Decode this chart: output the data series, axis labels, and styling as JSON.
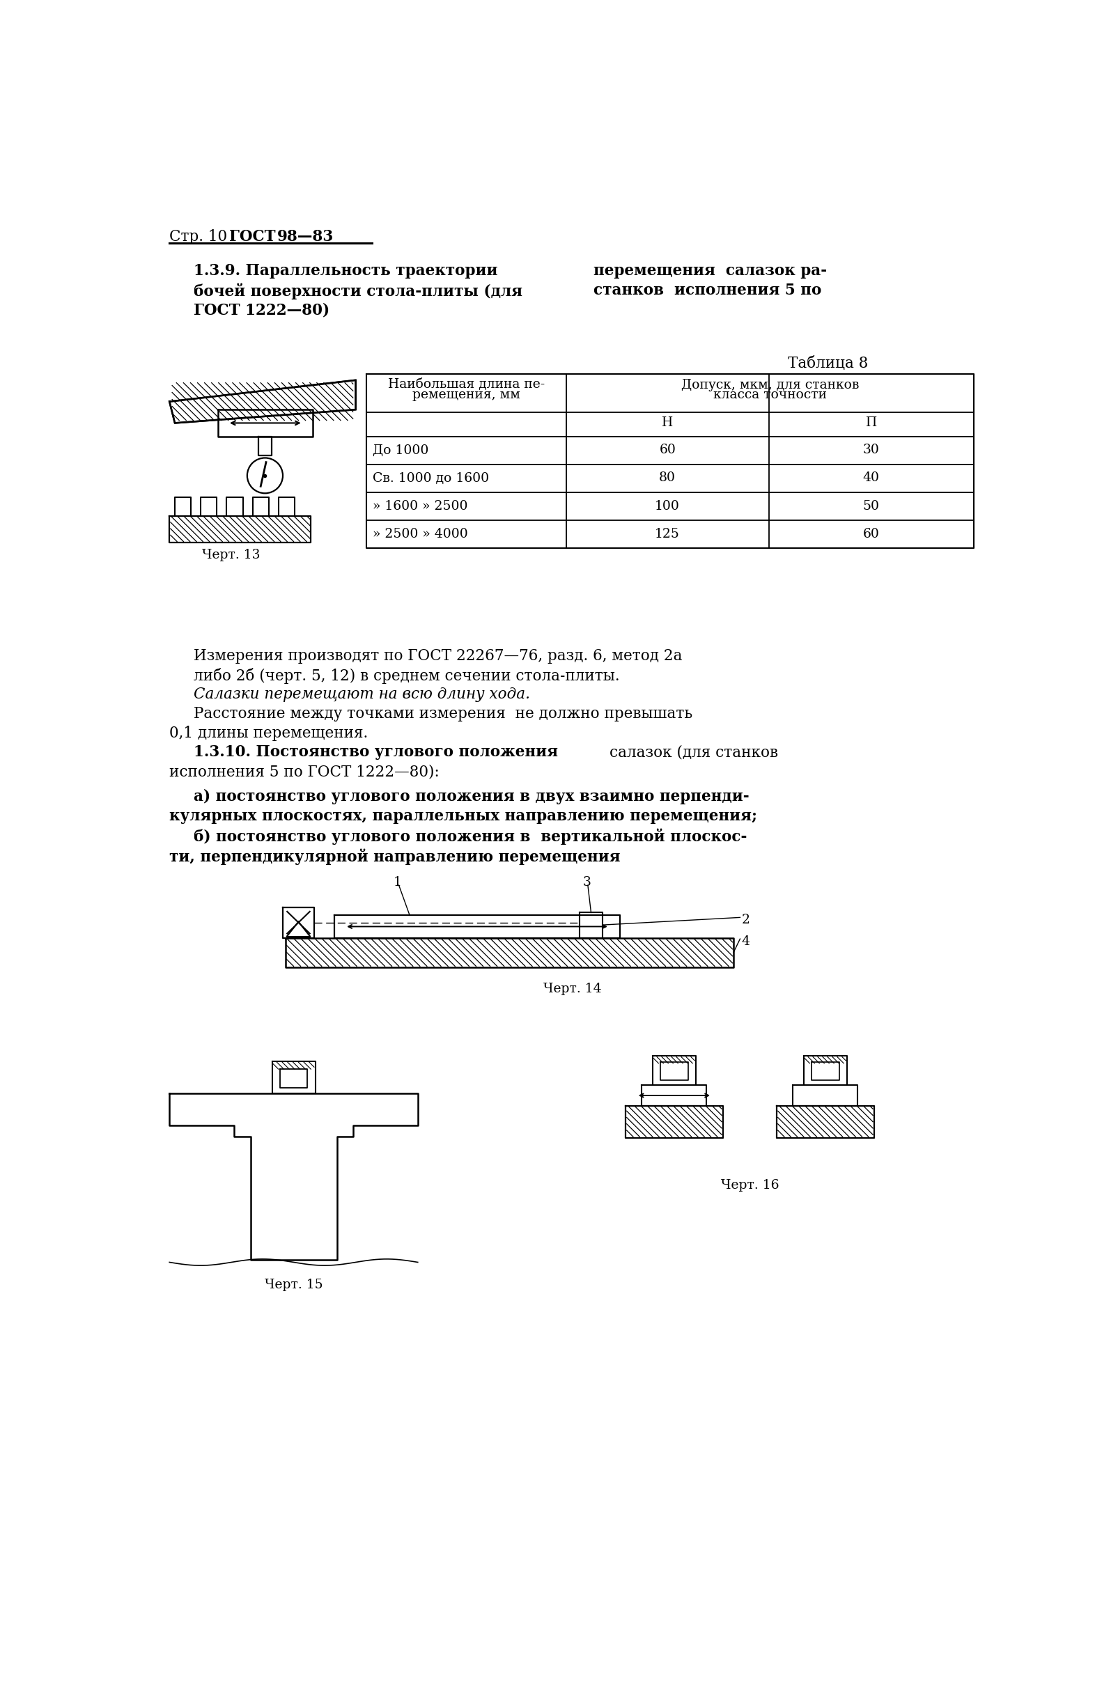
{
  "bg_color": "#ffffff",
  "text_color": "#000000",
  "header_left": "Стр. 10",
  "header_gost": "ГОСТ",
  "header_num": "98—83",
  "title_bold1": "1.3.9. Параллельность траектории",
  "title_bold2": "перемещения  салазок ра-",
  "title_bold3": "бочей поверхности стола-плиты (для",
  "title_bold4": "станков  исполнения 5 по",
  "title_bold5": "ГОСТ 1222—80)",
  "table_caption": "Таблица 8",
  "tbl_col1a": "Наибольшая длина пе-",
  "tbl_col1b": "ремещения, мм",
  "tbl_col2a": "Допуск, мкм, для станков",
  "tbl_col2b": "класса точности",
  "tbl_H": "Н",
  "tbl_P": "П",
  "rows": [
    {
      "label": "До 1000",
      "H": "60",
      "P": "30"
    },
    {
      "label": "Св. 1000 до 1600",
      "H": "80",
      "P": "40"
    },
    {
      "label": "» 1600 » 2500",
      "H": "100",
      "P": "50"
    },
    {
      "label": "» 2500 » 4000",
      "H": "125",
      "P": "60"
    }
  ],
  "chert13": "Черт. 13",
  "para1a": "Измерения производят по ГОСТ 22267—76, разд. 6, метод 2а",
  "para1b": "либо 2б (черт. 5, 12) в среднем сечении стола-плиты.",
  "para2": "Салазки перемещают на всю длину хода.",
  "para3a": "Расстояние между точками измерения  не должно превышать",
  "para3b": "0,1 длины перемещения.",
  "sec2_t1": "1.3.10. Постоянство углового положения",
  "sec2_t2": "салазок (для станков",
  "sec2_t3": "исполнения 5 по ГОСТ 1222—80):",
  "sec2_a1": "а) постоянство углового положения в двух взаимно перпенди-",
  "sec2_a2": "кулярных плоскостях, параллельных направлению перемещения;",
  "sec2_b1": "б) постоянство углового положения в  вертикальной плоскос-",
  "sec2_b2": "ти, перпендикулярной направлению перемещения",
  "chert14": "Черт. 14",
  "chert15": "Черт. 15",
  "chert16": "Черт. 16"
}
